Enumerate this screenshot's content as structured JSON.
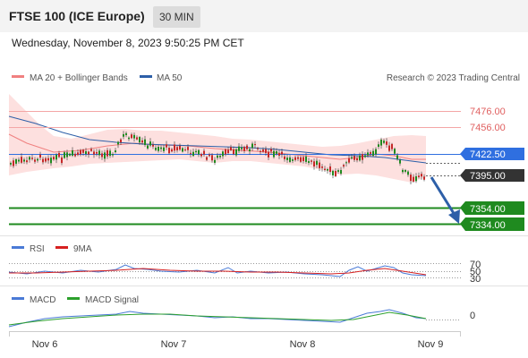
{
  "header": {
    "title": "FTSE 100 (ICE Europe)",
    "timeframe": "30 MIN"
  },
  "datetime": "Wednesday, November 8, 2023 9:50:25 PM CET",
  "legend": {
    "bollinger": "MA 20 + Bollinger Bands",
    "ma50": "MA 50",
    "credit": "Research © 2023 Trading Central"
  },
  "levels": {
    "r1": {
      "value": "7476.00",
      "color": "#f08080"
    },
    "r2": {
      "value": "7456.00",
      "color": "#f08080"
    },
    "current_ma": {
      "value": "7422.50",
      "color": "#2f6fe0"
    },
    "last": {
      "value": "7395.00",
      "color": "#333333"
    },
    "s1": {
      "value": "7354.00",
      "color": "#1f8a1f"
    },
    "s2": {
      "value": "7334.00",
      "color": "#1f8a1f"
    }
  },
  "rsi": {
    "label": "RSI",
    "signal_label": "9MA",
    "levels": [
      "70",
      "50",
      "30"
    ],
    "rsi_color": "#4a7ad6",
    "signal_color": "#d62020"
  },
  "macd": {
    "label": "MACD",
    "signal_label": "MACD Signal",
    "zero": "0",
    "macd_color": "#4a7ad6",
    "signal_color": "#2ca02c"
  },
  "xaxis": {
    "ticks": [
      "Nov 6",
      "Nov 7",
      "Nov 8",
      "Nov 9"
    ]
  },
  "colors": {
    "up": "#1f8a1f",
    "down": "#c62828",
    "band": "#fde0df",
    "arrow": "#2d5fa8"
  }
}
